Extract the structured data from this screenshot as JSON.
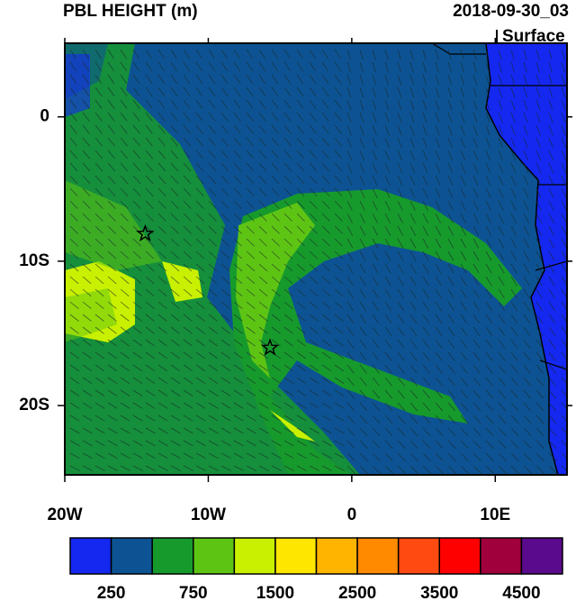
{
  "title": "PBL HEIGHT (m)",
  "valid_time": "2018-09-30_03",
  "level": "Surface",
  "map": {
    "lon_range": [
      -20,
      15
    ],
    "lat_range": [
      -24.8,
      5.1
    ],
    "lon_labels": [
      {
        "value": -20,
        "label": "20W"
      },
      {
        "value": -10,
        "label": "10W"
      },
      {
        "value": 0,
        "label": "0"
      },
      {
        "value": 10,
        "label": "10E"
      }
    ],
    "lat_labels": [
      {
        "value": 0,
        "label": "0"
      },
      {
        "value": -10,
        "label": "10S"
      },
      {
        "value": -20,
        "label": "20S"
      }
    ],
    "stars": [
      {
        "lon": -14.4,
        "lat": -8.1
      },
      {
        "lon": -5.7,
        "lat": -16.0
      }
    ]
  },
  "colorbar": {
    "colors": [
      "#1428f0",
      "#0d5393",
      "#179a2c",
      "#5ec414",
      "#c8f000",
      "#ffe600",
      "#ffb400",
      "#ff8a00",
      "#ff4a12",
      "#ff0000",
      "#a0003c",
      "#5a0a8c"
    ],
    "labels": [
      250,
      750,
      1500,
      2500,
      3500,
      4500
    ]
  }
}
